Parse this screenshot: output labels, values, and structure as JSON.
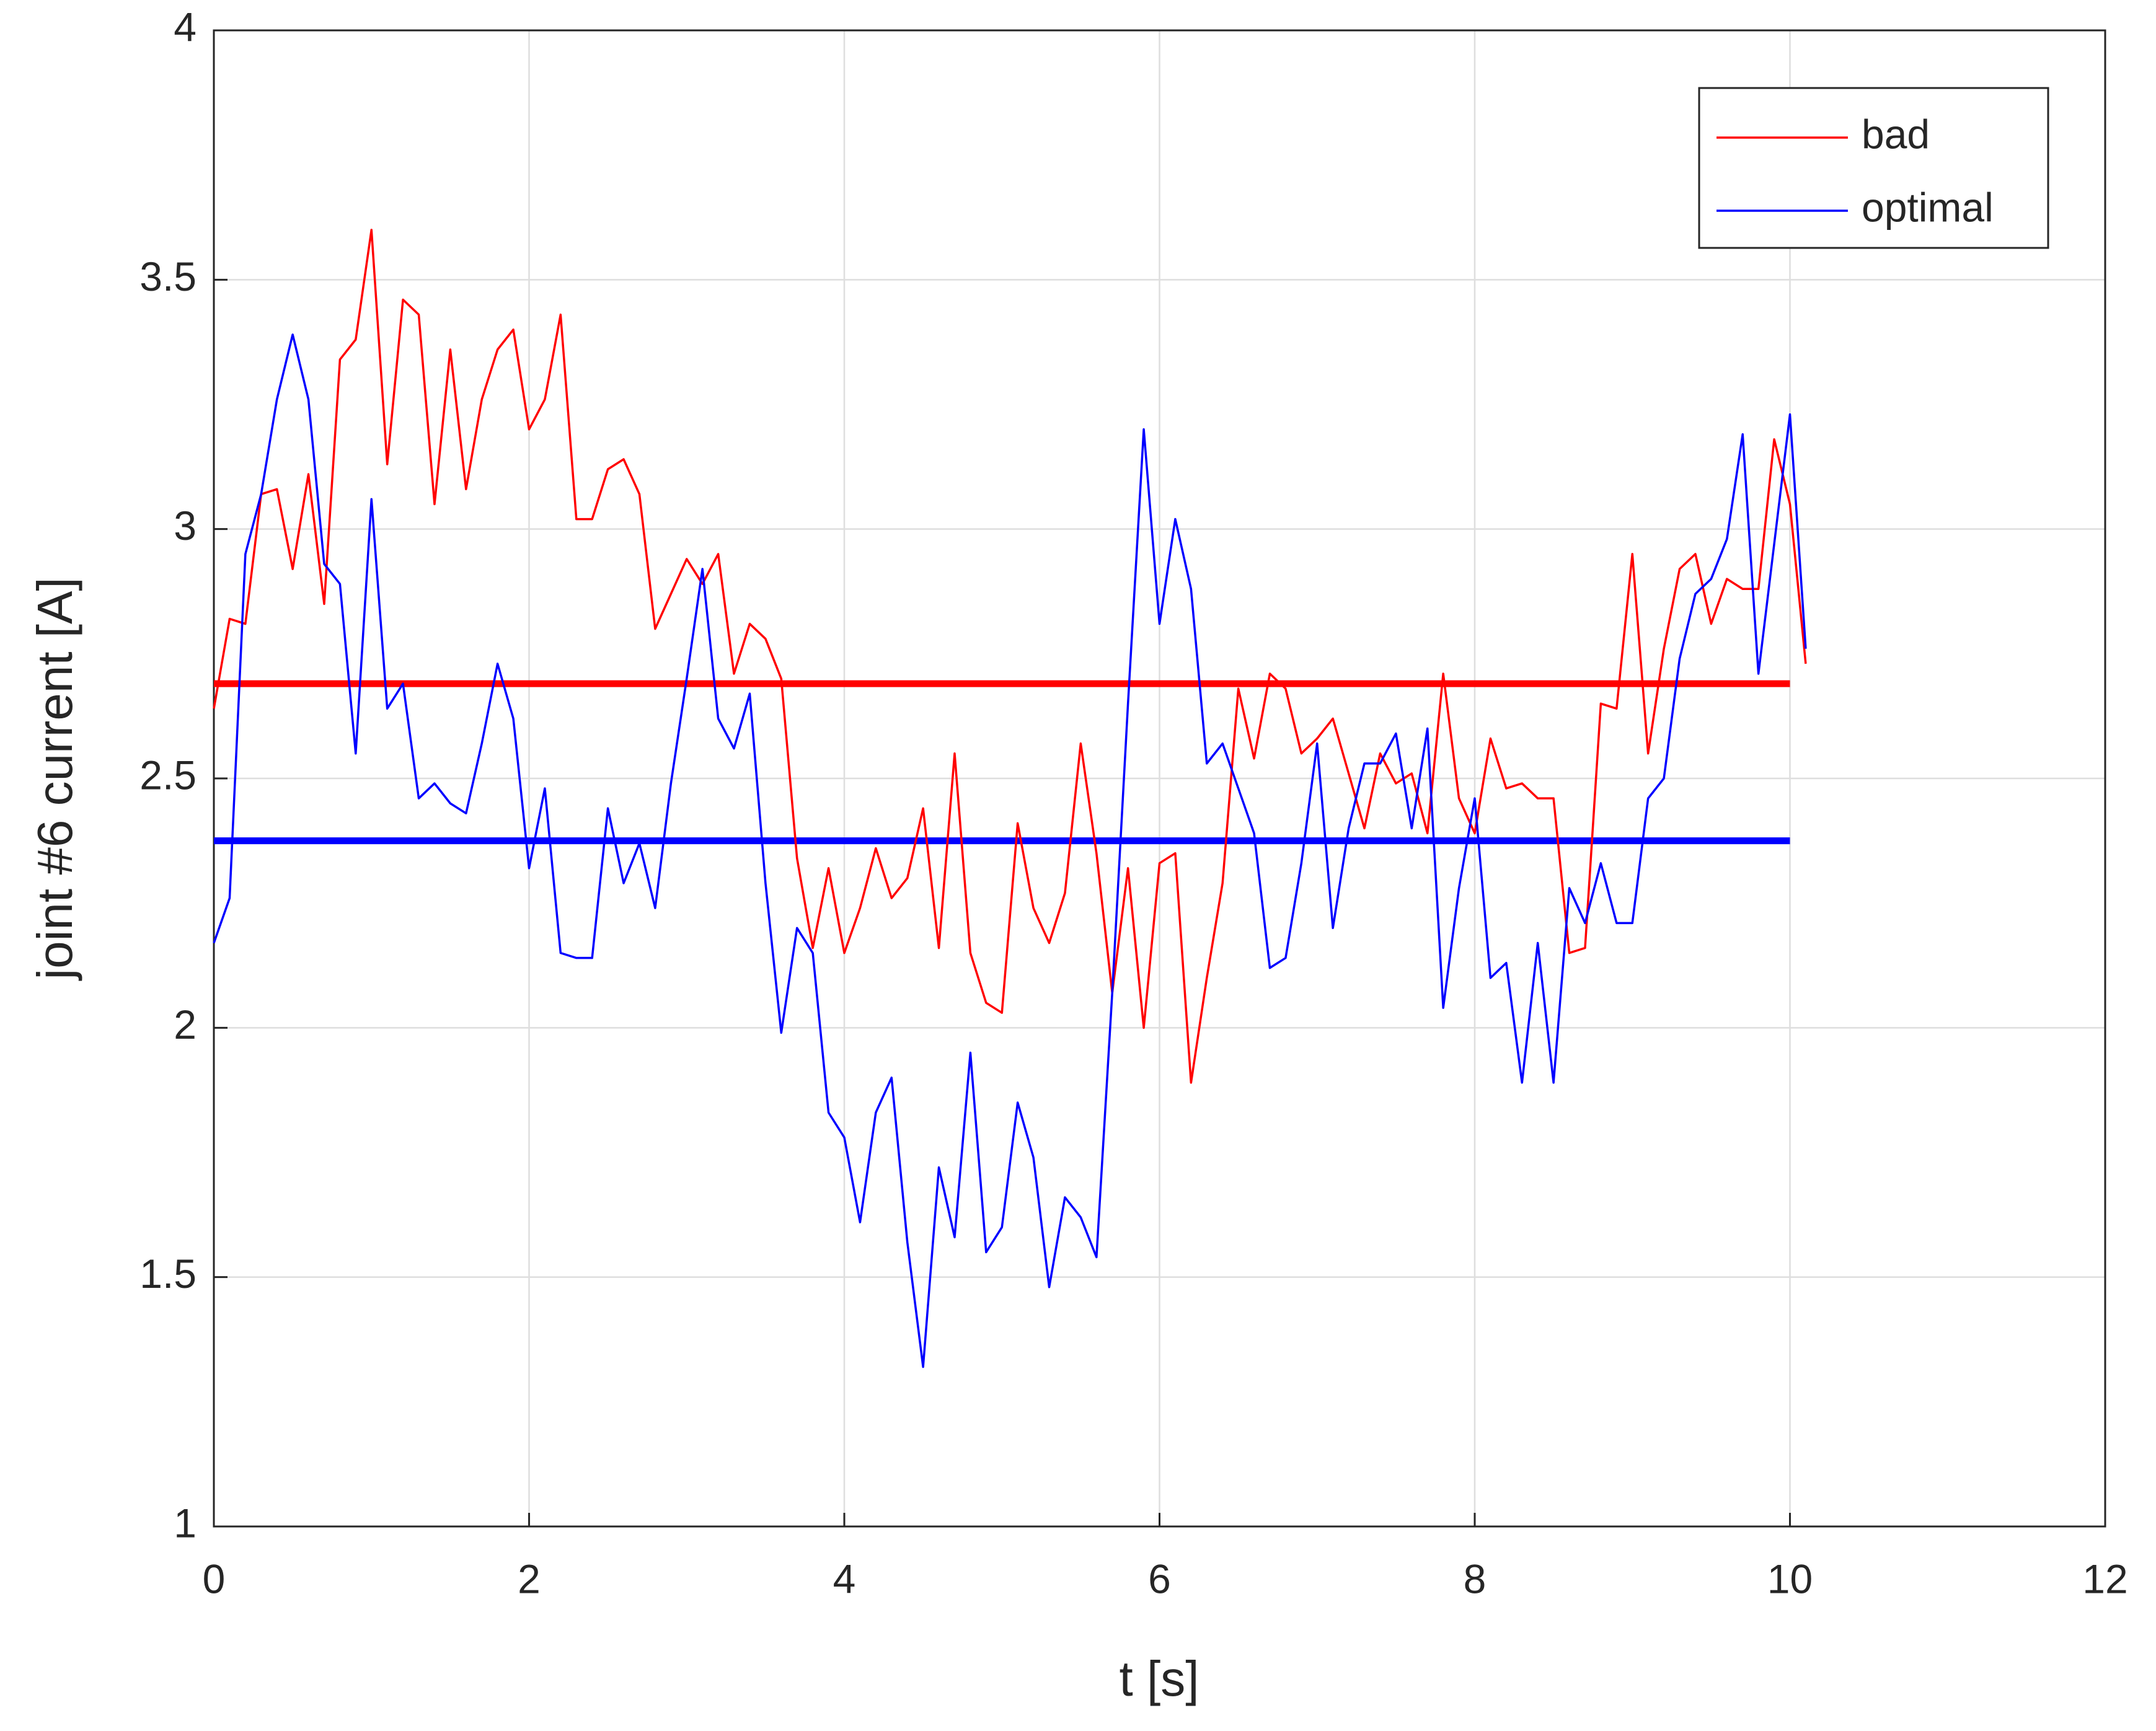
{
  "chart_data": {
    "type": "line",
    "xlabel": "t [s]",
    "ylabel": "joint #6 current [A]",
    "xlim": [
      0,
      12
    ],
    "ylim": [
      1,
      4
    ],
    "xticks": [
      0,
      2,
      4,
      6,
      8,
      10,
      12
    ],
    "yticks": [
      1,
      1.5,
      2,
      2.5,
      3,
      3.5,
      4
    ],
    "grid": true,
    "legend": "upper right",
    "x": [
      0.0,
      0.1,
      0.2,
      0.3,
      0.4,
      0.5,
      0.6,
      0.7,
      0.8,
      0.9,
      1.0,
      1.1,
      1.2,
      1.3,
      1.4,
      1.5,
      1.6,
      1.7,
      1.8,
      1.9,
      2.0,
      2.1,
      2.2,
      2.3,
      2.4,
      2.5,
      2.6,
      2.7,
      2.8,
      2.9,
      3.0,
      3.1,
      3.2,
      3.3,
      3.4,
      3.5,
      3.6,
      3.7,
      3.8,
      3.9,
      4.0,
      4.1,
      4.2,
      4.3,
      4.4,
      4.5,
      4.6,
      4.7,
      4.8,
      4.9,
      5.0,
      5.1,
      5.2,
      5.3,
      5.4,
      5.5,
      5.6,
      5.7,
      5.8,
      5.9,
      6.0,
      6.1,
      6.2,
      6.3,
      6.4,
      6.5,
      6.6,
      6.7,
      6.8,
      6.9,
      7.0,
      7.1,
      7.2,
      7.3,
      7.4,
      7.5,
      7.6,
      7.7,
      7.8,
      7.9,
      8.0,
      8.1,
      8.2,
      8.3,
      8.4,
      8.5,
      8.6,
      8.7,
      8.8,
      8.9,
      9.0,
      9.1,
      9.2,
      9.3,
      9.4,
      9.5,
      9.6,
      9.7,
      9.8,
      9.9,
      10.0,
      10.1
    ],
    "series": [
      {
        "name": "bad",
        "color": "#ff0000",
        "values": [
          2.64,
          2.82,
          2.81,
          3.07,
          3.08,
          2.92,
          3.11,
          2.85,
          3.34,
          3.38,
          3.6,
          3.13,
          3.46,
          3.43,
          3.05,
          3.36,
          3.08,
          3.26,
          3.36,
          3.4,
          3.2,
          3.26,
          3.43,
          3.02,
          3.02,
          3.12,
          3.14,
          3.07,
          2.8,
          2.87,
          2.94,
          2.89,
          2.95,
          2.71,
          2.81,
          2.78,
          2.7,
          2.34,
          2.16,
          2.32,
          2.15,
          2.24,
          2.36,
          2.26,
          2.3,
          2.44,
          2.16,
          2.55,
          2.15,
          2.05,
          2.03,
          2.41,
          2.24,
          2.17,
          2.27,
          2.57,
          2.35,
          2.07,
          2.32,
          2.0,
          2.33,
          2.35,
          1.89,
          2.1,
          2.29,
          2.68,
          2.54,
          2.71,
          2.68,
          2.55,
          2.58,
          2.62,
          2.51,
          2.4,
          2.55,
          2.49,
          2.51,
          2.39,
          2.71,
          2.46,
          2.39,
          2.58,
          2.48,
          2.49,
          2.46,
          2.46,
          2.15,
          2.16,
          2.65,
          2.64,
          2.95,
          2.55,
          2.76,
          2.92,
          2.95,
          2.81,
          2.9,
          2.88,
          2.88,
          3.18,
          3.05,
          2.73
        ]
      },
      {
        "name": "optimal",
        "color": "#0000ff",
        "values": [
          2.17,
          2.26,
          2.95,
          3.07,
          3.26,
          3.39,
          3.26,
          2.93,
          2.89,
          2.55,
          3.06,
          2.64,
          2.69,
          2.46,
          2.49,
          2.45,
          2.43,
          2.57,
          2.73,
          2.62,
          2.32,
          2.48,
          2.15,
          2.14,
          2.14,
          2.44,
          2.29,
          2.37,
          2.24,
          2.49,
          2.7,
          2.92,
          2.62,
          2.56,
          2.67,
          2.29,
          1.99,
          2.2,
          2.15,
          1.83,
          1.78,
          1.61,
          1.83,
          1.9,
          1.57,
          1.32,
          1.72,
          1.58,
          1.95,
          1.55,
          1.6,
          1.85,
          1.74,
          1.48,
          1.66,
          1.62,
          1.54,
          2.07,
          2.65,
          3.2,
          2.81,
          3.02,
          2.88,
          2.53,
          2.57,
          2.48,
          2.39,
          2.12,
          2.14,
          2.33,
          2.57,
          2.2,
          2.4,
          2.53,
          2.53,
          2.59,
          2.4,
          2.6,
          2.04,
          2.28,
          2.46,
          2.1,
          2.13,
          1.89,
          2.17,
          1.89,
          2.28,
          2.21,
          2.33,
          2.21,
          2.21,
          2.46,
          2.5,
          2.74,
          2.87,
          2.9,
          2.98,
          3.19,
          2.71,
          2.97,
          3.23,
          2.76
        ]
      }
    ],
    "reference_lines": [
      {
        "value": 2.69,
        "color": "#ff0000",
        "xlim": [
          0,
          10
        ]
      },
      {
        "value": 2.375,
        "color": "#0000ff",
        "xlim": [
          0,
          10
        ]
      }
    ]
  }
}
